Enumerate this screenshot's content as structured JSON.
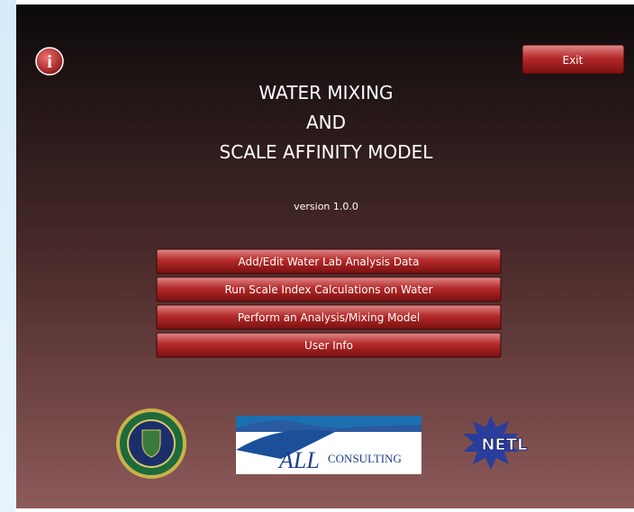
{
  "header": {
    "info": "i",
    "exit": "Exit",
    "title_lines": [
      "WATER MIXING",
      "AND",
      "SCALE AFFINITY MODEL"
    ],
    "version": "version 1.0.0"
  },
  "menu": {
    "buttons": [
      "Add/Edit Water Lab Analysis Data",
      "Run Scale Index Calculations on Water",
      "Perform an Analysis/Mixing Model",
      "User Info"
    ]
  },
  "logos": {
    "all_consulting": {
      "main": "ALL",
      "sub": "CONSULTING"
    },
    "netl": "NETL"
  }
}
